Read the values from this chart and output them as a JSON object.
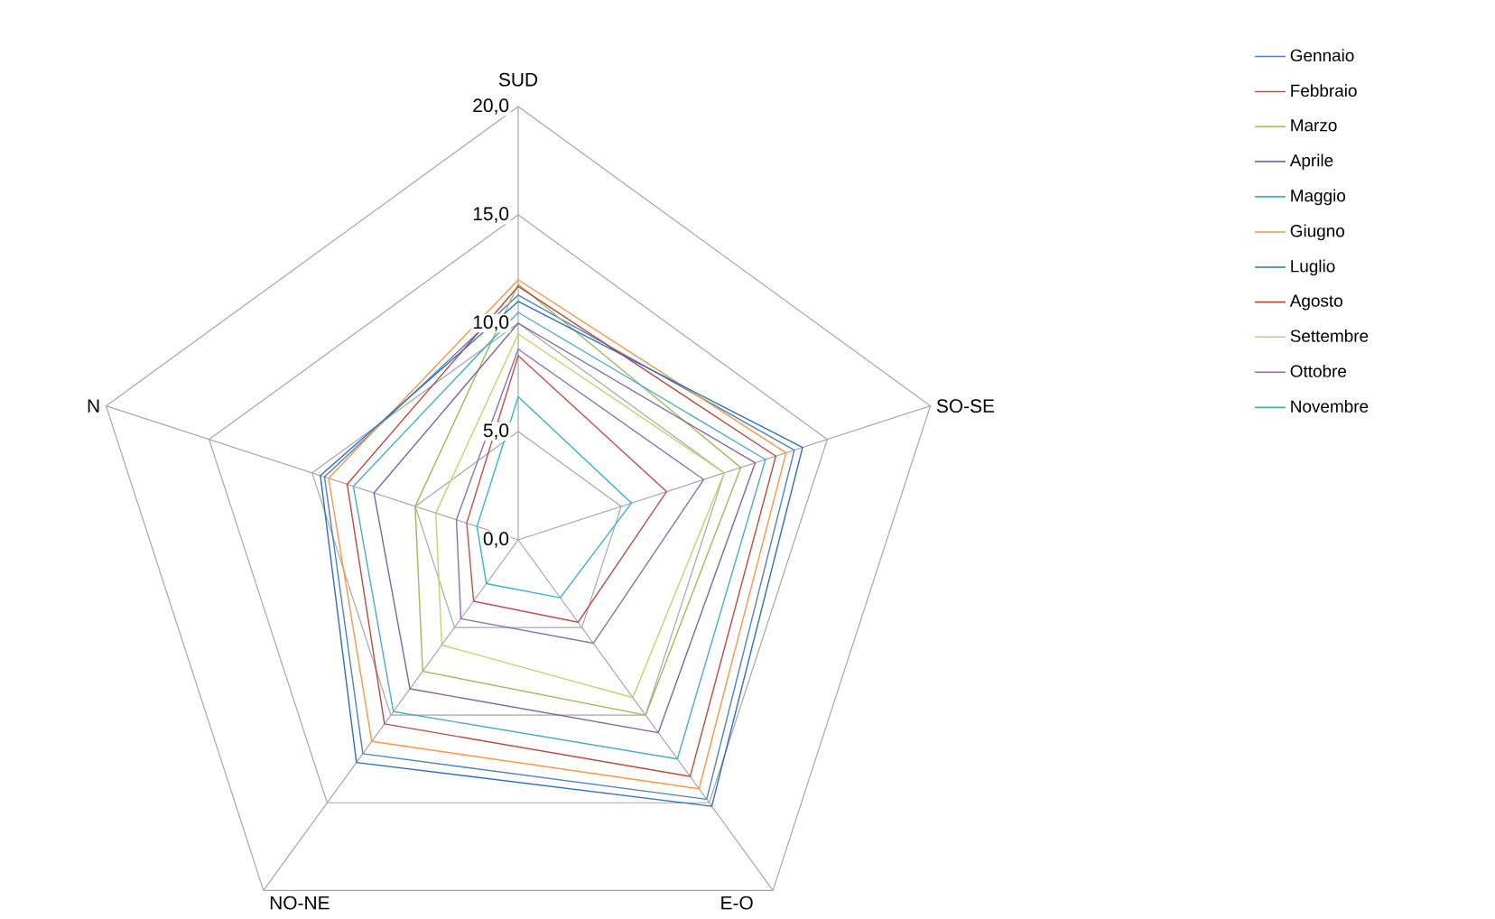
{
  "chart_data": {
    "type": "radar",
    "categories": [
      "SUD",
      "SO-SE",
      "E-O",
      "NO-NE",
      "N"
    ],
    "ylim": [
      0,
      20
    ],
    "yticks": [
      {
        "value": 0,
        "label": "0,0"
      },
      {
        "value": 5,
        "label": "5,0"
      },
      {
        "value": 10,
        "label": "10,0"
      },
      {
        "value": 15,
        "label": "15,0"
      },
      {
        "value": 20,
        "label": "20,0"
      }
    ],
    "grid": true,
    "legend": "right",
    "series": [
      {
        "name": "Gennaio",
        "color": "#4f81bd",
        "values": [
          11.3,
          13.4,
          14.8,
          12.2,
          9.4
        ]
      },
      {
        "name": "Febbraio",
        "color": "#c0504d",
        "values": [
          8.5,
          7.2,
          4.7,
          3.5,
          2.5
        ]
      },
      {
        "name": "Marzo",
        "color": "#9bbb59",
        "values": [
          11.8,
          10.8,
          10.0,
          7.5,
          5.0
        ]
      },
      {
        "name": "Aprile",
        "color": "#8064a2",
        "values": [
          10.0,
          11.5,
          11.0,
          8.5,
          7.0
        ]
      },
      {
        "name": "Maggio",
        "color": "#4bacc6",
        "values": [
          10.5,
          12.0,
          12.5,
          9.8,
          8.0
        ]
      },
      {
        "name": "Giugno",
        "color": "#f79646",
        "values": [
          12.0,
          13.0,
          14.2,
          11.5,
          9.2
        ]
      },
      {
        "name": "Luglio",
        "color": "#2c6fbf",
        "values": [
          11.0,
          13.8,
          15.2,
          12.7,
          9.6
        ]
      },
      {
        "name": "Agosto",
        "color": "#b84a3e",
        "values": [
          11.7,
          12.5,
          13.5,
          10.5,
          8.3
        ]
      },
      {
        "name": "Settembre",
        "color": "#c3d36b",
        "values": [
          9.5,
          10.0,
          9.0,
          6.0,
          4.0
        ]
      },
      {
        "name": "Ottobre",
        "color": "#8e6fb5",
        "values": [
          8.8,
          9.0,
          5.9,
          4.5,
          3.0
        ]
      },
      {
        "name": "Novembre",
        "color": "#33b3d6",
        "values": [
          6.6,
          5.5,
          3.3,
          2.5,
          2.0
        ]
      }
    ]
  }
}
